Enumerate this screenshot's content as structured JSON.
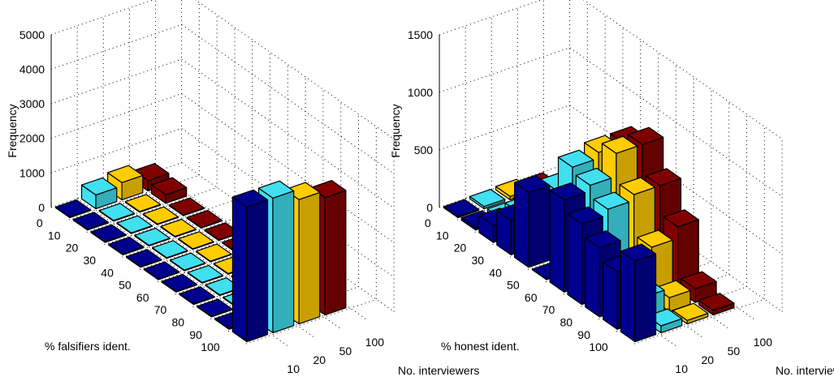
{
  "chart_data": [
    {
      "type": "bar3d",
      "zlabel": "Frequency",
      "xlabel": "% falsifiers ident.",
      "ylabel": "No. interviewers",
      "x_categories": [
        "0",
        "10",
        "20",
        "30",
        "40",
        "50",
        "60",
        "70",
        "80",
        "90",
        "100"
      ],
      "series_categories": [
        "10",
        "20",
        "50",
        "100"
      ],
      "z_ticks": [
        "0",
        "1000",
        "2000",
        "3000",
        "4000",
        "5000"
      ],
      "zlim": [
        0,
        5000
      ],
      "colors": [
        "#00008f",
        "#40e0f0",
        "#ffcc00",
        "#800000"
      ],
      "values": [
        [
          20,
          20,
          20,
          20,
          20,
          20,
          20,
          20,
          20,
          20,
          3900
        ],
        [
          400,
          20,
          20,
          20,
          20,
          20,
          20,
          20,
          20,
          20,
          3900
        ],
        [
          500,
          20,
          20,
          20,
          20,
          20,
          20,
          20,
          300,
          20,
          3600
        ],
        [
          300,
          250,
          20,
          20,
          20,
          20,
          20,
          20,
          20,
          20,
          3400
        ]
      ]
    },
    {
      "type": "bar3d",
      "zlabel": "Frequency",
      "xlabel": "% honest ident.",
      "ylabel": "No. interviewers",
      "x_categories": [
        "0",
        "10",
        "20",
        "30",
        "40",
        "50",
        "60",
        "70",
        "80",
        "90",
        "100"
      ],
      "series_categories": [
        "10",
        "20",
        "50",
        "100"
      ],
      "z_ticks": [
        "0",
        "500",
        "1000",
        "1500"
      ],
      "zlim": [
        0,
        1500
      ],
      "colors": [
        "#00008f",
        "#40e0f0",
        "#ffcc00",
        "#800000"
      ],
      "values": [
        [
          10,
          20,
          150,
          300,
          650,
          5,
          800,
          700,
          600,
          500,
          700
        ],
        [
          20,
          20,
          180,
          350,
          600,
          900,
          850,
          750,
          300,
          200,
          60
        ],
        [
          30,
          40,
          100,
          350,
          600,
          950,
          1050,
          800,
          450,
          120,
          30
        ],
        [
          10,
          20,
          60,
          250,
          750,
          950,
          1050,
          800,
          550,
          120,
          40
        ]
      ]
    }
  ]
}
